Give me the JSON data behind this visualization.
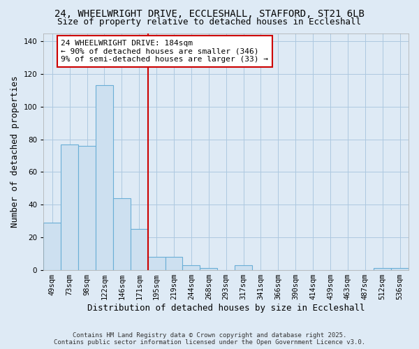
{
  "title_line1": "24, WHEELWRIGHT DRIVE, ECCLESHALL, STAFFORD, ST21 6LB",
  "title_line2": "Size of property relative to detached houses in Eccleshall",
  "xlabel": "Distribution of detached houses by size in Eccleshall",
  "ylabel": "Number of detached properties",
  "bar_labels": [
    "49sqm",
    "73sqm",
    "98sqm",
    "122sqm",
    "146sqm",
    "171sqm",
    "195sqm",
    "219sqm",
    "244sqm",
    "268sqm",
    "293sqm",
    "317sqm",
    "341sqm",
    "366sqm",
    "390sqm",
    "414sqm",
    "439sqm",
    "463sqm",
    "487sqm",
    "512sqm",
    "536sqm"
  ],
  "bar_values": [
    29,
    77,
    76,
    113,
    44,
    25,
    8,
    8,
    3,
    1,
    0,
    3,
    0,
    0,
    0,
    0,
    0,
    0,
    0,
    1,
    1
  ],
  "bar_color": "#cde0f0",
  "bar_edge_color": "#6aaed6",
  "vline_color": "#cc0000",
  "vline_x_index": 6.0,
  "annotation_box_color": "#ffffff",
  "annotation_box_edge": "#cc0000",
  "property_label": "24 WHEELWRIGHT DRIVE: 184sqm",
  "annotation_line1": "← 90% of detached houses are smaller (346)",
  "annotation_line2": "9% of semi-detached houses are larger (33) →",
  "ylim": [
    0,
    145
  ],
  "yticks": [
    0,
    20,
    40,
    60,
    80,
    100,
    120,
    140
  ],
  "grid_color": "#adc8e0",
  "bg_color": "#deeaf5",
  "footer_text": "Contains HM Land Registry data © Crown copyright and database right 2025.\nContains public sector information licensed under the Open Government Licence v3.0.",
  "title_fontsize": 10,
  "subtitle_fontsize": 9,
  "tick_fontsize": 7.5,
  "axis_label_fontsize": 9,
  "annotation_fontsize": 8
}
